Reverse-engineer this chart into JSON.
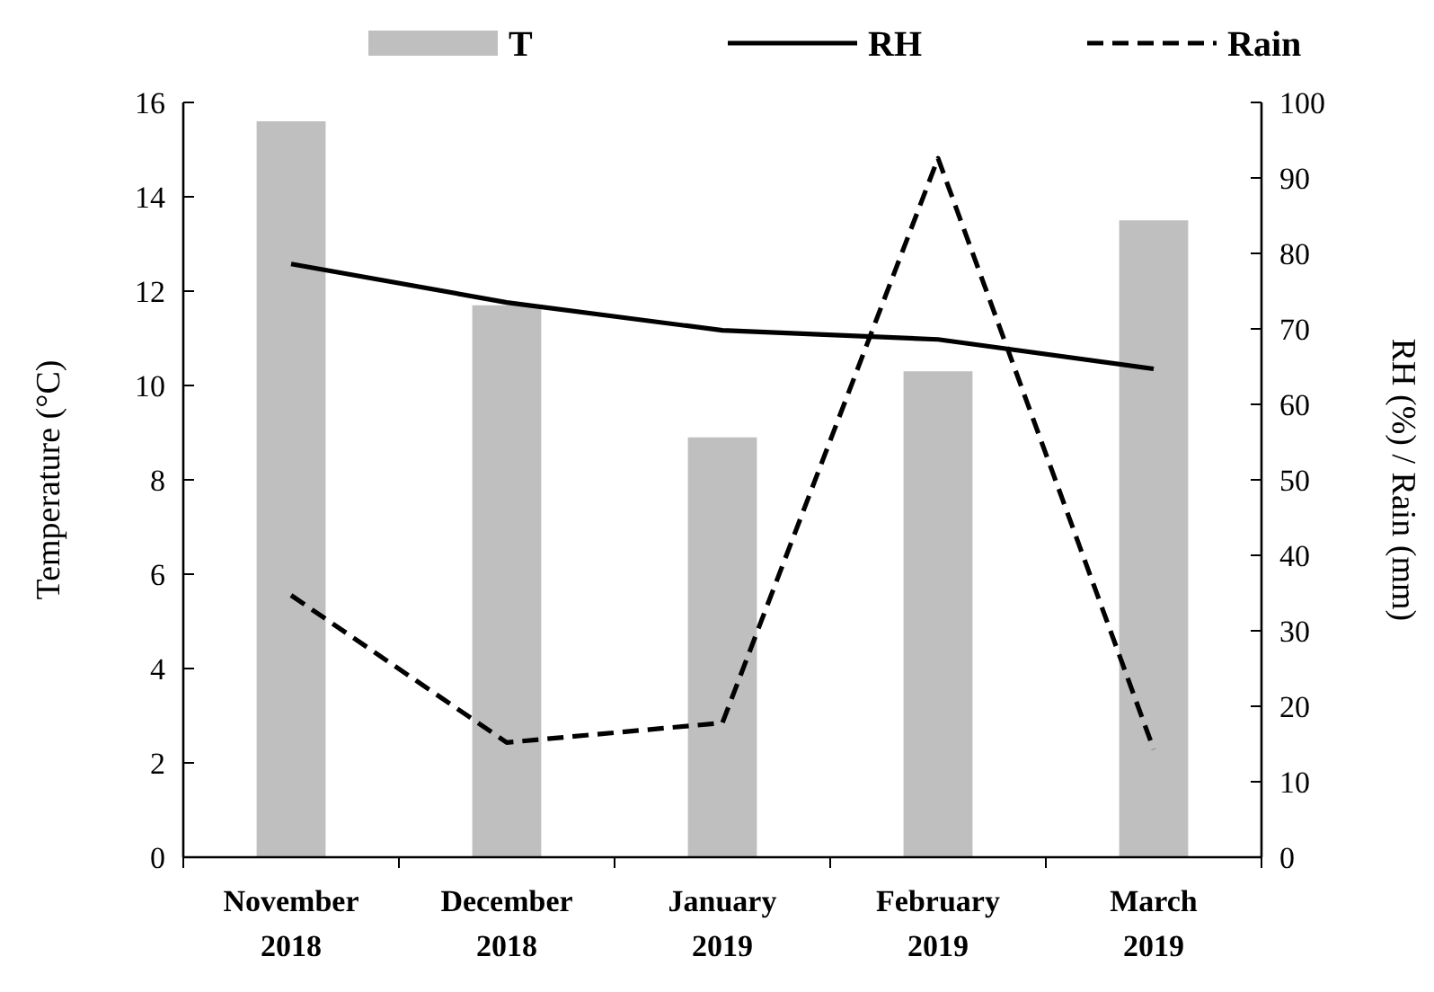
{
  "chart_data": {
    "type": "bar",
    "categories": [
      "November 2018",
      "December 2018",
      "January 2019",
      "February 2019",
      "March 2019"
    ],
    "ylabel": "Temperature (°C)",
    "y2label": "RH (%) / Rain (mm)",
    "ylim": [
      0,
      16
    ],
    "yticks": [
      0,
      2,
      4,
      6,
      8,
      10,
      12,
      14,
      16
    ],
    "y2lim": [
      0,
      100
    ],
    "y2ticks": [
      0,
      10,
      20,
      30,
      40,
      50,
      60,
      70,
      80,
      90,
      100
    ],
    "legend": "top",
    "grid": false,
    "series": [
      {
        "name": "T",
        "color": "#bfbfbf",
        "values": [
          15.6,
          11.7,
          8.9,
          10.3,
          13.5
        ]
      },
      {
        "name": "RH",
        "type": "line",
        "axis": "y2",
        "color": "#000000",
        "line_style": "solid",
        "values": [
          78.6,
          73.5,
          69.8,
          68.6,
          64.7
        ]
      },
      {
        "name": "Rain",
        "type": "line",
        "axis": "y2",
        "color": "#000000",
        "line_style": "dashed",
        "values": [
          34.7,
          15.2,
          17.8,
          92.6,
          14.3
        ]
      }
    ]
  }
}
